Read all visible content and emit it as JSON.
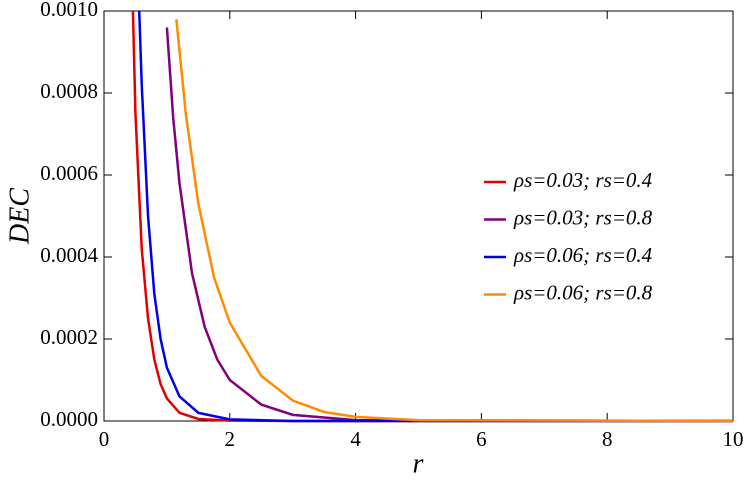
{
  "chart_data": {
    "type": "line",
    "x_label": "r",
    "y_label": "DEC",
    "xlim": [
      0,
      10
    ],
    "ylim": [
      0,
      0.001
    ],
    "xticks": [
      0,
      2,
      4,
      6,
      8,
      10
    ],
    "yticks": [
      {
        "value": 0,
        "label": "0.0000"
      },
      {
        "value": 0.0002,
        "label": "0.0002"
      },
      {
        "value": 0.0004,
        "label": "0.0004"
      },
      {
        "value": 0.0006,
        "label": "0.0006"
      },
      {
        "value": 0.0008,
        "label": "0.0008"
      },
      {
        "value": 0.001,
        "label": "0.0010"
      }
    ],
    "legend_position": "right",
    "series": [
      {
        "name": "ρs=0.03; rs=0.4",
        "color": "#e00000",
        "x": [
          0.46,
          0.5,
          0.6,
          0.7,
          0.8,
          0.9,
          1.0,
          1.2,
          1.5,
          2,
          3,
          10
        ],
        "values": [
          0.001,
          0.00075,
          0.00042,
          0.00025,
          0.00015,
          9e-05,
          5.5e-05,
          2e-05,
          5e-06,
          1e-06,
          0,
          0
        ]
      },
      {
        "name": "ρs=0.03; rs=0.8",
        "color": "#800080",
        "x": [
          1.0,
          1.1,
          1.2,
          1.4,
          1.6,
          1.8,
          2,
          2.5,
          3,
          4,
          10
        ],
        "values": [
          0.00096,
          0.00074,
          0.00058,
          0.00036,
          0.00023,
          0.00015,
          0.0001,
          4e-05,
          1.5e-05,
          2e-06,
          0
        ]
      },
      {
        "name": "ρs=0.06; rs=0.4",
        "color": "#0000ee",
        "x": [
          0.56,
          0.6,
          0.7,
          0.8,
          0.9,
          1.0,
          1.2,
          1.5,
          2,
          3,
          10
        ],
        "values": [
          0.001,
          0.00082,
          0.0005,
          0.00031,
          0.0002,
          0.00013,
          6e-05,
          2e-05,
          4e-06,
          0,
          0
        ]
      },
      {
        "name": "ρs=0.06; rs=0.8",
        "color": "#ff8c00",
        "x": [
          1.15,
          1.3,
          1.5,
          1.75,
          2,
          2.5,
          3,
          3.5,
          4,
          5,
          10
        ],
        "values": [
          0.00098,
          0.00075,
          0.00053,
          0.00035,
          0.00024,
          0.00011,
          5e-05,
          2.2e-05,
          1e-05,
          2e-06,
          0
        ]
      }
    ]
  }
}
